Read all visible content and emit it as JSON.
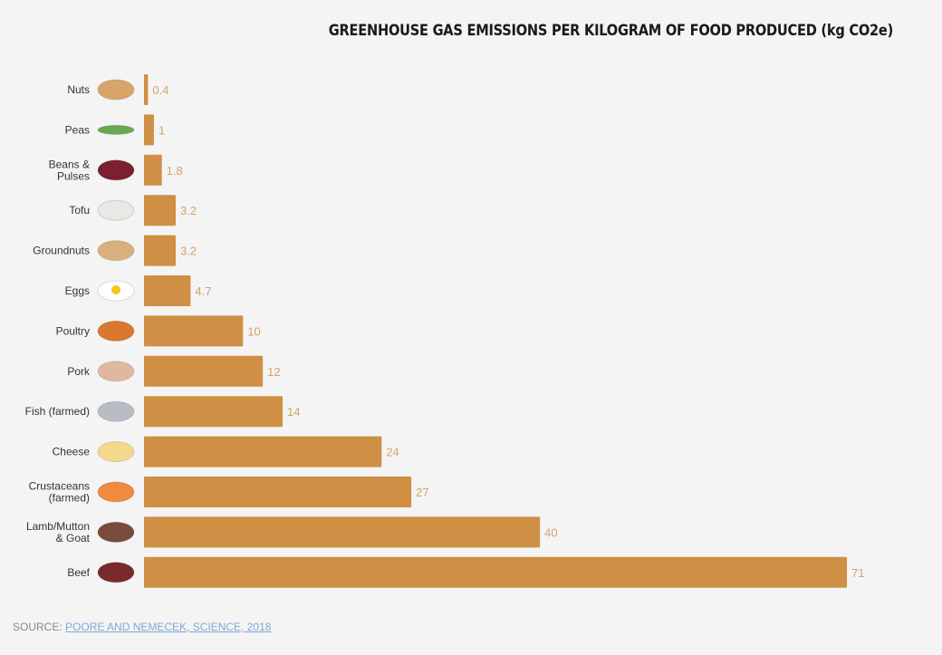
{
  "chart_data": {
    "type": "bar",
    "orientation": "horizontal",
    "title": "GREENHOUSE GAS EMISSIONS PER KILOGRAM OF FOOD PRODUCED (kg CO2e)",
    "categories": [
      "Nuts",
      "Peas",
      "Beans & Pulses",
      "Tofu",
      "Groundnuts",
      "Eggs",
      "Poultry",
      "Pork",
      "Fish (farmed)",
      "Cheese",
      "Crustaceans (farmed)",
      "Lamb/Mutton & Goat",
      "Beef"
    ],
    "category_lines": [
      [
        "Nuts"
      ],
      [
        "Peas"
      ],
      [
        "Beans &",
        "Pulses"
      ],
      [
        "Tofu"
      ],
      [
        "Groundnuts"
      ],
      [
        "Eggs"
      ],
      [
        "Poultry"
      ],
      [
        "Pork"
      ],
      [
        "Fish (farmed)"
      ],
      [
        "Cheese"
      ],
      [
        "Crustaceans",
        "(farmed)"
      ],
      [
        "Lamb/Mutton",
        "& Goat"
      ],
      [
        "Beef"
      ]
    ],
    "values": [
      0.4,
      1,
      1.8,
      3.2,
      3.2,
      4.7,
      10,
      12,
      14,
      24,
      27,
      40,
      71
    ],
    "value_labels": [
      "0.4",
      "1",
      "1.8",
      "3.2",
      "3.2",
      "4.7",
      "10",
      "12",
      "14",
      "24",
      "27",
      "40",
      "71"
    ],
    "icons": [
      "nuts-icon",
      "peas-icon",
      "beans-icon",
      "tofu-icon",
      "groundnuts-icon",
      "egg-icon",
      "poultry-icon",
      "pork-icon",
      "fish-icon",
      "cheese-icon",
      "shrimp-icon",
      "lamb-icon",
      "beef-icon"
    ],
    "icon_colors": [
      "#d9a46a",
      "#6aa84f",
      "#7a2030",
      "#e8e8e4",
      "#d9b07a",
      "#ffffff",
      "#d9782e",
      "#e0b8a0",
      "#b8bcc4",
      "#f4d98a",
      "#f08a40",
      "#7a4a3a",
      "#7a2a2a"
    ],
    "xlim": [
      0,
      71
    ],
    "grid": false,
    "bar_color": "#cf8f45",
    "label_color": "#d4a26a"
  },
  "source": {
    "prefix": "SOURCE: ",
    "link": "POORE AND NEMECEK, SCIENCE, 2018"
  }
}
